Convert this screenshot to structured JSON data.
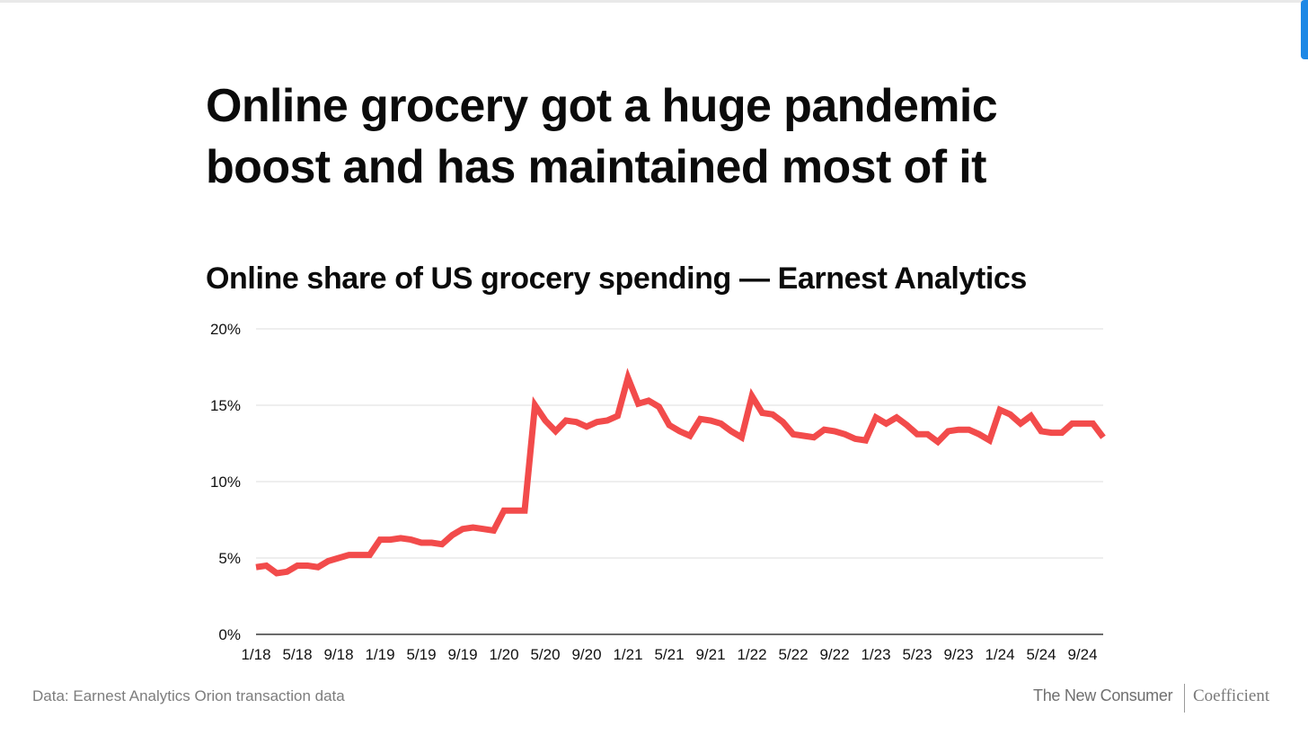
{
  "headline": "Online grocery got a huge pandemic boost and has maintained most of it",
  "footer": {
    "source": "Data: Earnest Analytics Orion transaction data",
    "brand": "The New Consumer",
    "partner": "Coefficient"
  },
  "colors": {
    "line": "#f24b4b",
    "grid": "#dedede",
    "axis": "#111111",
    "accent_tab": "#1e88e5"
  },
  "chart_data": {
    "type": "line",
    "title": "Online share of US grocery spending — Earnest Analytics",
    "xlabel": "",
    "ylabel": "",
    "ylim": [
      0,
      20
    ],
    "y_ticks": [
      "0%",
      "5%",
      "10%",
      "15%",
      "20%"
    ],
    "y_tick_values": [
      0,
      5,
      10,
      15,
      20
    ],
    "x_ticks": [
      "1/18",
      "5/18",
      "9/18",
      "1/19",
      "5/19",
      "9/19",
      "1/20",
      "5/20",
      "9/20",
      "1/21",
      "5/21",
      "9/21",
      "1/22",
      "5/22",
      "9/22",
      "1/23",
      "5/23",
      "9/23",
      "1/24",
      "5/24",
      "9/24"
    ],
    "grid": true,
    "legend": "none",
    "series": [
      {
        "name": "",
        "x": [
          "1/18",
          "2/18",
          "3/18",
          "4/18",
          "5/18",
          "6/18",
          "7/18",
          "8/18",
          "9/18",
          "10/18",
          "11/18",
          "12/18",
          "1/19",
          "2/19",
          "3/19",
          "4/19",
          "5/19",
          "6/19",
          "7/19",
          "8/19",
          "9/19",
          "10/19",
          "11/19",
          "12/19",
          "1/20",
          "2/20",
          "3/20",
          "4/20",
          "5/20",
          "6/20",
          "7/20",
          "8/20",
          "9/20",
          "10/20",
          "11/20",
          "12/20",
          "1/21",
          "2/21",
          "3/21",
          "4/21",
          "5/21",
          "6/21",
          "7/21",
          "8/21",
          "9/21",
          "10/21",
          "11/21",
          "12/21",
          "1/22",
          "2/22",
          "3/22",
          "4/22",
          "5/22",
          "6/22",
          "7/22",
          "8/22",
          "9/22",
          "10/22",
          "11/22",
          "12/22",
          "1/23",
          "2/23",
          "3/23",
          "4/23",
          "5/23",
          "6/23",
          "7/23",
          "8/23",
          "9/23",
          "10/23",
          "11/23",
          "12/23",
          "1/24",
          "2/24",
          "3/24",
          "4/24",
          "5/24",
          "6/24",
          "7/24",
          "8/24",
          "9/24",
          "10/24",
          "11/24"
        ],
        "values": [
          4.4,
          4.5,
          4.0,
          4.1,
          4.5,
          4.5,
          4.4,
          4.8,
          5.0,
          5.2,
          5.2,
          5.2,
          6.2,
          6.2,
          6.3,
          6.2,
          6.0,
          6.0,
          5.9,
          6.5,
          6.9,
          7.0,
          6.9,
          6.8,
          8.1,
          8.1,
          8.1,
          15.0,
          14.0,
          13.3,
          14.0,
          13.9,
          13.6,
          13.9,
          14.0,
          14.3,
          16.8,
          15.1,
          15.3,
          14.9,
          13.7,
          13.3,
          13.0,
          14.1,
          14.0,
          13.8,
          13.3,
          12.9,
          15.6,
          14.5,
          14.4,
          13.9,
          13.1,
          13.0,
          12.9,
          13.4,
          13.3,
          13.1,
          12.8,
          12.7,
          14.2,
          13.8,
          14.2,
          13.7,
          13.1,
          13.1,
          12.6,
          13.3,
          13.4,
          13.4,
          13.1,
          12.7,
          14.7,
          14.4,
          13.8,
          14.3,
          13.3,
          13.2,
          13.2,
          13.8,
          13.8,
          13.8,
          12.9
        ]
      }
    ]
  }
}
